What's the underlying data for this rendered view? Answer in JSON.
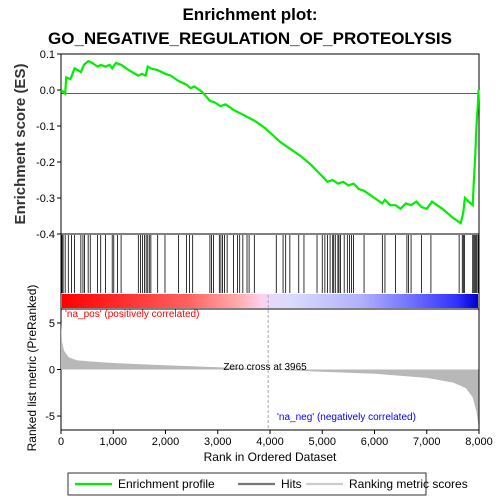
{
  "title_line1": "Enrichment plot:",
  "title_line2": "GO_NEGATIVE_REGULATION_OF_PROTEOLYSIS",
  "colors": {
    "enrichment_line": "#00ee00",
    "hit_line": "#000000",
    "pos_text": "#ff0000",
    "neg_text": "#0000ff",
    "metric_fill": "#b8b8b8"
  },
  "chart_data": {
    "type": "line",
    "panels": [
      "enrichment",
      "hits",
      "ranked_metric"
    ],
    "x_label": "Rank in Ordered Dataset",
    "x_ticks": [
      "0",
      "1,000",
      "2,000",
      "3,000",
      "4,000",
      "5,000",
      "6,000",
      "7,000",
      "8,000"
    ],
    "xlim": [
      0,
      8000
    ],
    "grid": false,
    "legend_position": "bottom",
    "enrichment": {
      "ylabel": "Enrichment score (ES)",
      "ylim": [
        -0.4,
        0.1
      ],
      "y_ticks": [
        "0.1",
        "0.0",
        "-0.1",
        "-0.2",
        "-0.3",
        "-0.4"
      ],
      "points": [
        [
          0,
          0.0
        ],
        [
          80,
          -0.01
        ],
        [
          100,
          0.035
        ],
        [
          180,
          0.03
        ],
        [
          260,
          0.06
        ],
        [
          380,
          0.05
        ],
        [
          440,
          0.07
        ],
        [
          520,
          0.08
        ],
        [
          600,
          0.075
        ],
        [
          700,
          0.065
        ],
        [
          760,
          0.07
        ],
        [
          850,
          0.065
        ],
        [
          930,
          0.07
        ],
        [
          980,
          0.06
        ],
        [
          1050,
          0.075
        ],
        [
          1150,
          0.07
        ],
        [
          1300,
          0.055
        ],
        [
          1480,
          0.04
        ],
        [
          1550,
          0.045
        ],
        [
          1620,
          0.04
        ],
        [
          1660,
          0.065
        ],
        [
          1720,
          0.06
        ],
        [
          1850,
          0.055
        ],
        [
          2000,
          0.045
        ],
        [
          2100,
          0.04
        ],
        [
          2250,
          0.025
        ],
        [
          2400,
          0.015
        ],
        [
          2480,
          0.005
        ],
        [
          2550,
          0.01
        ],
        [
          2700,
          -0.005
        ],
        [
          2850,
          -0.03
        ],
        [
          2950,
          -0.035
        ],
        [
          3050,
          -0.045
        ],
        [
          3150,
          -0.04
        ],
        [
          3300,
          -0.055
        ],
        [
          3500,
          -0.07
        ],
        [
          3700,
          -0.085
        ],
        [
          3900,
          -0.105
        ],
        [
          4050,
          -0.125
        ],
        [
          4200,
          -0.145
        ],
        [
          4400,
          -0.165
        ],
        [
          4600,
          -0.185
        ],
        [
          4800,
          -0.21
        ],
        [
          4900,
          -0.225
        ],
        [
          5000,
          -0.24
        ],
        [
          5100,
          -0.255
        ],
        [
          5200,
          -0.25
        ],
        [
          5300,
          -0.26
        ],
        [
          5400,
          -0.255
        ],
        [
          5500,
          -0.265
        ],
        [
          5600,
          -0.26
        ],
        [
          5700,
          -0.275
        ],
        [
          5800,
          -0.28
        ],
        [
          6000,
          -0.3
        ],
        [
          6150,
          -0.315
        ],
        [
          6200,
          -0.305
        ],
        [
          6300,
          -0.32
        ],
        [
          6400,
          -0.32
        ],
        [
          6500,
          -0.33
        ],
        [
          6600,
          -0.315
        ],
        [
          6700,
          -0.32
        ],
        [
          6800,
          -0.31
        ],
        [
          6900,
          -0.325
        ],
        [
          7000,
          -0.33
        ],
        [
          7100,
          -0.31
        ],
        [
          7300,
          -0.33
        ],
        [
          7500,
          -0.355
        ],
        [
          7650,
          -0.37
        ],
        [
          7700,
          -0.34
        ],
        [
          7730,
          -0.3
        ],
        [
          7800,
          -0.31
        ],
        [
          7880,
          -0.32
        ],
        [
          7900,
          -0.255
        ],
        [
          7930,
          -0.18
        ],
        [
          7945,
          -0.12
        ],
        [
          7960,
          -0.08
        ],
        [
          7975,
          -0.05
        ],
        [
          7990,
          0.0
        ]
      ]
    },
    "hits": [
      10,
      20,
      40,
      80,
      140,
      200,
      260,
      380,
      420,
      450,
      520,
      560,
      700,
      760,
      850,
      980,
      1010,
      1080,
      1150,
      1480,
      1520,
      1560,
      1600,
      1630,
      1660,
      1690,
      1720,
      1850,
      1990,
      2250,
      2400,
      2460,
      2520,
      2850,
      2880,
      2920,
      3030,
      3060,
      3090,
      3130,
      3180,
      3300,
      3380,
      3420,
      3480,
      3560,
      3600,
      3700,
      4120,
      4250,
      4300,
      4380,
      4550,
      4650,
      4900,
      5000,
      5050,
      5100,
      5150,
      5200,
      5220,
      5250,
      5300,
      5320,
      5350,
      5420,
      5480,
      5520,
      5560,
      5600,
      5800,
      6150,
      6200,
      6400,
      6620,
      6650,
      6700,
      6900,
      7080,
      7620,
      7680,
      7700,
      7720,
      7880,
      7900,
      7920,
      7940,
      7960,
      7985
    ],
    "ranked_metric": {
      "ylabel": "Ranked list metric (PreRanked)",
      "ylim": [
        -6.5,
        6.5
      ],
      "y_ticks": [
        "5",
        "0",
        "-5"
      ],
      "points": [
        [
          0,
          5.0
        ],
        [
          20,
          3.0
        ],
        [
          60,
          2.0
        ],
        [
          150,
          1.3
        ],
        [
          300,
          1.0
        ],
        [
          600,
          0.85
        ],
        [
          1000,
          0.7
        ],
        [
          2000,
          0.45
        ],
        [
          3000,
          0.25
        ],
        [
          3965,
          0.0
        ],
        [
          5000,
          -0.25
        ],
        [
          6000,
          -0.45
        ],
        [
          7000,
          -0.9
        ],
        [
          7500,
          -1.4
        ],
        [
          7750,
          -2.0
        ],
        [
          7880,
          -3.0
        ],
        [
          7950,
          -4.5
        ],
        [
          7990,
          -6.0
        ]
      ]
    },
    "annotations": {
      "pos_label": "'na_pos' (positively correlated)",
      "neg_label": "'na_neg' (negatively correlated)",
      "zero_cross": "Zero cross at 3965",
      "zero_cross_rank": 3965
    },
    "legend": [
      {
        "label": "Enrichment profile",
        "kind": "enrichment"
      },
      {
        "label": "Hits",
        "kind": "hits"
      },
      {
        "label": "Ranking metric scores",
        "kind": "metric"
      }
    ]
  }
}
